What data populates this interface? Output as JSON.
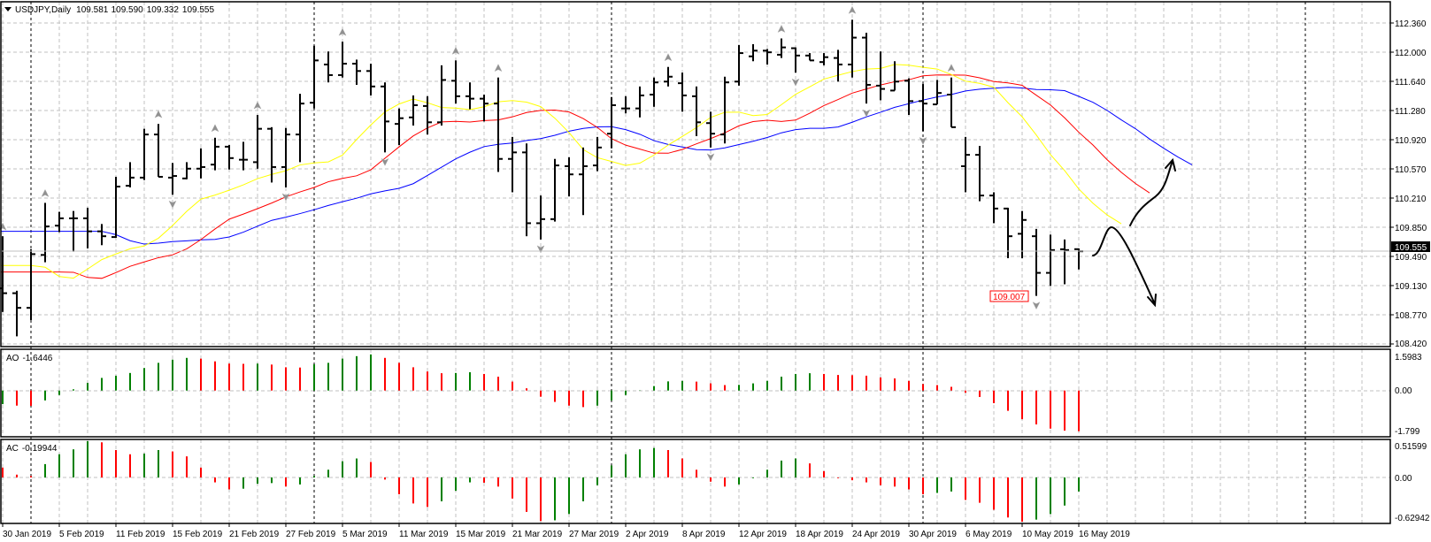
{
  "header": {
    "symbol_timeframe": "USDJPY,Daily",
    "open": "109.581",
    "high": "109.590",
    "low": "109.332",
    "close": "109.555",
    "menu_icon": "triangle-down-icon"
  },
  "price_axis": {
    "labels": [
      "112.360",
      "112.000",
      "111.640",
      "111.280",
      "110.920",
      "110.570",
      "110.210",
      "109.850",
      "109.490",
      "109.130",
      "108.770",
      "108.420"
    ],
    "current_price": "109.555"
  },
  "ao_panel": {
    "name": "AO",
    "value": "-1.6446",
    "axis_labels": [
      "1.5983",
      "0.00",
      "-1.799"
    ]
  },
  "ac_panel": {
    "name": "AC",
    "value": "-0.19944",
    "axis_labels": [
      "0.51599",
      "0.00",
      "-0.62942"
    ]
  },
  "low_marker": "109.007",
  "colors": {
    "bull": "#008000",
    "bear": "#ff0000",
    "bars": "#000000",
    "jaw": "#0000ff",
    "teeth": "#ff0000",
    "lips": "#ffff00"
  },
  "chart_data": {
    "type": "ohlc",
    "title": "USDJPY,Daily",
    "ylim": [
      108.42,
      112.36
    ],
    "x_labels": [
      {
        "bar": 0,
        "text": "30 Jan 2019"
      },
      {
        "bar": 4,
        "text": "5 Feb 2019"
      },
      {
        "bar": 8,
        "text": "11 Feb 2019"
      },
      {
        "bar": 12,
        "text": "15 Feb 2019"
      },
      {
        "bar": 16,
        "text": "21 Feb 2019"
      },
      {
        "bar": 20,
        "text": "27 Feb 2019"
      },
      {
        "bar": 24,
        "text": "5 Mar 2019"
      },
      {
        "bar": 28,
        "text": "11 Mar 2019"
      },
      {
        "bar": 32,
        "text": "15 Mar 2019"
      },
      {
        "bar": 36,
        "text": "21 Mar 2019"
      },
      {
        "bar": 40,
        "text": "27 Mar 2019"
      },
      {
        "bar": 44,
        "text": "2 Apr 2019"
      },
      {
        "bar": 48,
        "text": "8 Apr 2019"
      },
      {
        "bar": 52,
        "text": "12 Apr 2019"
      },
      {
        "bar": 56,
        "text": "18 Apr 2019"
      },
      {
        "bar": 60,
        "text": "24 Apr 2019"
      },
      {
        "bar": 64,
        "text": "30 Apr 2019"
      },
      {
        "bar": 68,
        "text": "6 May 2019"
      },
      {
        "bar": 72,
        "text": "10 May 2019"
      },
      {
        "bar": 76,
        "text": "16 May 2019"
      }
    ],
    "month_separators": [
      2,
      22,
      43,
      65,
      92
    ],
    "ohlc": [
      [
        109.1,
        109.74,
        108.81,
        109.04
      ],
      [
        109.04,
        109.07,
        108.51,
        108.86
      ],
      [
        108.86,
        109.58,
        108.71,
        109.52
      ],
      [
        109.51,
        110.15,
        109.42,
        109.86
      ],
      [
        109.87,
        110.04,
        109.79,
        109.96
      ],
      [
        109.96,
        110.05,
        109.55,
        109.96
      ],
      [
        109.96,
        110.09,
        109.59,
        109.8
      ],
      [
        109.8,
        109.89,
        109.63,
        109.74
      ],
      [
        109.73,
        110.47,
        109.72,
        110.35
      ],
      [
        110.36,
        110.65,
        110.34,
        110.46
      ],
      [
        110.46,
        111.06,
        110.43,
        110.99
      ],
      [
        110.99,
        111.12,
        110.47,
        110.47
      ],
      [
        110.46,
        110.64,
        110.25,
        110.48
      ],
      [
        110.45,
        110.65,
        110.44,
        110.57
      ],
      [
        110.57,
        110.82,
        110.45,
        110.59
      ],
      [
        110.62,
        110.95,
        110.55,
        110.84
      ],
      [
        110.84,
        110.86,
        110.56,
        110.7
      ],
      [
        110.68,
        110.9,
        110.55,
        110.68
      ],
      [
        110.65,
        111.23,
        110.57,
        111.06
      ],
      [
        111.06,
        111.08,
        110.4,
        110.59
      ],
      [
        110.59,
        111.07,
        110.34,
        110.99
      ],
      [
        110.99,
        111.49,
        110.65,
        111.37
      ],
      [
        111.38,
        112.08,
        111.31,
        111.9
      ],
      [
        111.85,
        112.01,
        111.63,
        111.72
      ],
      [
        111.72,
        112.13,
        111.69,
        111.86
      ],
      [
        111.86,
        111.91,
        111.6,
        111.77
      ],
      [
        111.77,
        111.86,
        111.47,
        111.58
      ],
      [
        111.58,
        111.63,
        110.77,
        111.15
      ],
      [
        111.12,
        111.31,
        110.86,
        111.19
      ],
      [
        111.2,
        111.47,
        111.1,
        111.35
      ],
      [
        111.34,
        111.46,
        110.99,
        111.14
      ],
      [
        111.14,
        111.84,
        111.1,
        111.66
      ],
      [
        111.65,
        111.9,
        111.37,
        111.46
      ],
      [
        111.46,
        111.63,
        111.3,
        111.43
      ],
      [
        111.43,
        111.48,
        111.15,
        111.37
      ],
      [
        111.37,
        111.69,
        110.53,
        110.69
      ],
      [
        110.69,
        110.96,
        110.28,
        110.77
      ],
      [
        110.77,
        110.88,
        109.74,
        109.9
      ],
      [
        109.9,
        110.24,
        109.7,
        109.95
      ],
      [
        109.95,
        110.69,
        109.92,
        110.61
      ],
      [
        110.6,
        110.71,
        110.23,
        110.5
      ],
      [
        110.5,
        110.83,
        110.0,
        110.6
      ],
      [
        110.61,
        110.96,
        110.54,
        110.83
      ],
      [
        111.0,
        111.45,
        110.82,
        111.35
      ],
      [
        111.31,
        111.46,
        111.25,
        111.31
      ],
      [
        111.31,
        111.58,
        111.2,
        111.47
      ],
      [
        111.48,
        111.69,
        111.33,
        111.63
      ],
      [
        111.64,
        111.82,
        111.58,
        111.7
      ],
      [
        111.62,
        111.75,
        111.27,
        111.47
      ],
      [
        111.46,
        111.58,
        110.97,
        111.14
      ],
      [
        111.13,
        111.27,
        110.83,
        111.0
      ],
      [
        110.99,
        111.7,
        110.88,
        111.63
      ],
      [
        111.64,
        112.09,
        111.59,
        111.99
      ],
      [
        111.95,
        112.1,
        111.89,
        112.02
      ],
      [
        112.02,
        112.04,
        111.85,
        112.0
      ],
      [
        111.97,
        112.17,
        111.93,
        112.06
      ],
      [
        112.05,
        112.06,
        111.75,
        111.96
      ],
      [
        111.96,
        111.99,
        111.9,
        111.9
      ],
      [
        111.88,
        111.99,
        111.84,
        111.94
      ],
      [
        111.93,
        112.03,
        111.64,
        111.85
      ],
      [
        111.85,
        112.4,
        111.69,
        112.18
      ],
      [
        112.18,
        112.24,
        111.37,
        111.6
      ],
      [
        111.59,
        112.01,
        111.41,
        111.55
      ],
      [
        111.53,
        111.89,
        111.53,
        111.64
      ],
      [
        111.65,
        111.68,
        111.23,
        111.4
      ],
      [
        111.4,
        111.61,
        111.03,
        111.37
      ],
      [
        111.36,
        111.66,
        111.36,
        111.5
      ],
      [
        111.48,
        111.69,
        111.08,
        111.08
      ],
      [
        110.6,
        110.96,
        110.28,
        110.74
      ],
      [
        110.74,
        110.85,
        110.17,
        110.24
      ],
      [
        110.24,
        110.28,
        109.9,
        110.08
      ],
      [
        110.08,
        110.09,
        109.47,
        109.74
      ],
      [
        109.77,
        110.05,
        109.47,
        109.94
      ],
      [
        109.74,
        109.83,
        109.007,
        109.29
      ],
      [
        109.29,
        109.76,
        109.13,
        109.57
      ],
      [
        109.58,
        109.7,
        109.15,
        109.57
      ],
      [
        109.581,
        109.59,
        109.332,
        109.555
      ]
    ],
    "fractals_up": [
      0,
      3,
      11,
      15,
      18,
      24,
      32,
      35,
      47,
      55,
      60,
      67
    ],
    "fractals_down": [
      12,
      20,
      27,
      38,
      50,
      56,
      61,
      65,
      73
    ],
    "alligator": {
      "jaw": {
        "period": 13,
        "shift": 8,
        "seed": 109.8
      },
      "teeth": {
        "period": 8,
        "shift": 5,
        "seed": 109.3
      },
      "lips": {
        "period": 5,
        "shift": 3,
        "seed": 109.38
      }
    },
    "ao": {
      "range": [
        -1.799,
        1.5983
      ],
      "first_up": true,
      "values": [
        -0.55,
        -0.61,
        -0.62,
        -0.4,
        -0.18,
        0.05,
        0.31,
        0.51,
        0.6,
        0.71,
        0.91,
        1.12,
        1.25,
        1.32,
        1.29,
        1.18,
        1.09,
        1.08,
        1.09,
        1.05,
        0.94,
        0.93,
        1.06,
        1.12,
        1.29,
        1.39,
        1.46,
        1.32,
        1.12,
        0.94,
        0.77,
        0.7,
        0.71,
        0.74,
        0.67,
        0.56,
        0.36,
        0.09,
        -0.25,
        -0.46,
        -0.61,
        -0.67,
        -0.61,
        -0.4,
        -0.18,
        0.01,
        0.18,
        0.37,
        0.39,
        0.36,
        0.29,
        0.22,
        0.23,
        0.29,
        0.39,
        0.56,
        0.67,
        0.7,
        0.67,
        0.63,
        0.62,
        0.6,
        0.53,
        0.49,
        0.39,
        0.26,
        0.22,
        0.15,
        -0.09,
        -0.26,
        -0.51,
        -0.82,
        -1.16,
        -1.37,
        -1.54,
        -1.62,
        -1.6446
      ]
    },
    "ac": {
      "range": [
        -0.62942,
        0.51599
      ],
      "first_up": false,
      "values": [
        0.14,
        0.04,
        0.02,
        0.19,
        0.33,
        0.4,
        0.516,
        0.5,
        0.39,
        0.33,
        0.34,
        0.39,
        0.37,
        0.3,
        0.14,
        -0.07,
        -0.17,
        -0.16,
        -0.09,
        -0.08,
        -0.13,
        -0.1,
        0.02,
        0.11,
        0.23,
        0.27,
        0.22,
        -0.03,
        -0.24,
        -0.37,
        -0.42,
        -0.34,
        -0.19,
        -0.07,
        -0.075,
        -0.13,
        -0.3,
        -0.49,
        -0.62,
        -0.61,
        -0.52,
        -0.34,
        -0.11,
        0.17,
        0.33,
        0.4,
        0.42,
        0.39,
        0.27,
        0.11,
        -0.06,
        -0.13,
        -0.1,
        -0.01,
        0.11,
        0.24,
        0.27,
        0.2,
        0.09,
        -0.01,
        -0.04,
        -0.07,
        -0.11,
        -0.13,
        -0.17,
        -0.24,
        -0.22,
        -0.2,
        -0.32,
        -0.36,
        -0.46,
        -0.57,
        -0.62942,
        -0.6,
        -0.52,
        -0.4,
        -0.19944
      ]
    }
  }
}
